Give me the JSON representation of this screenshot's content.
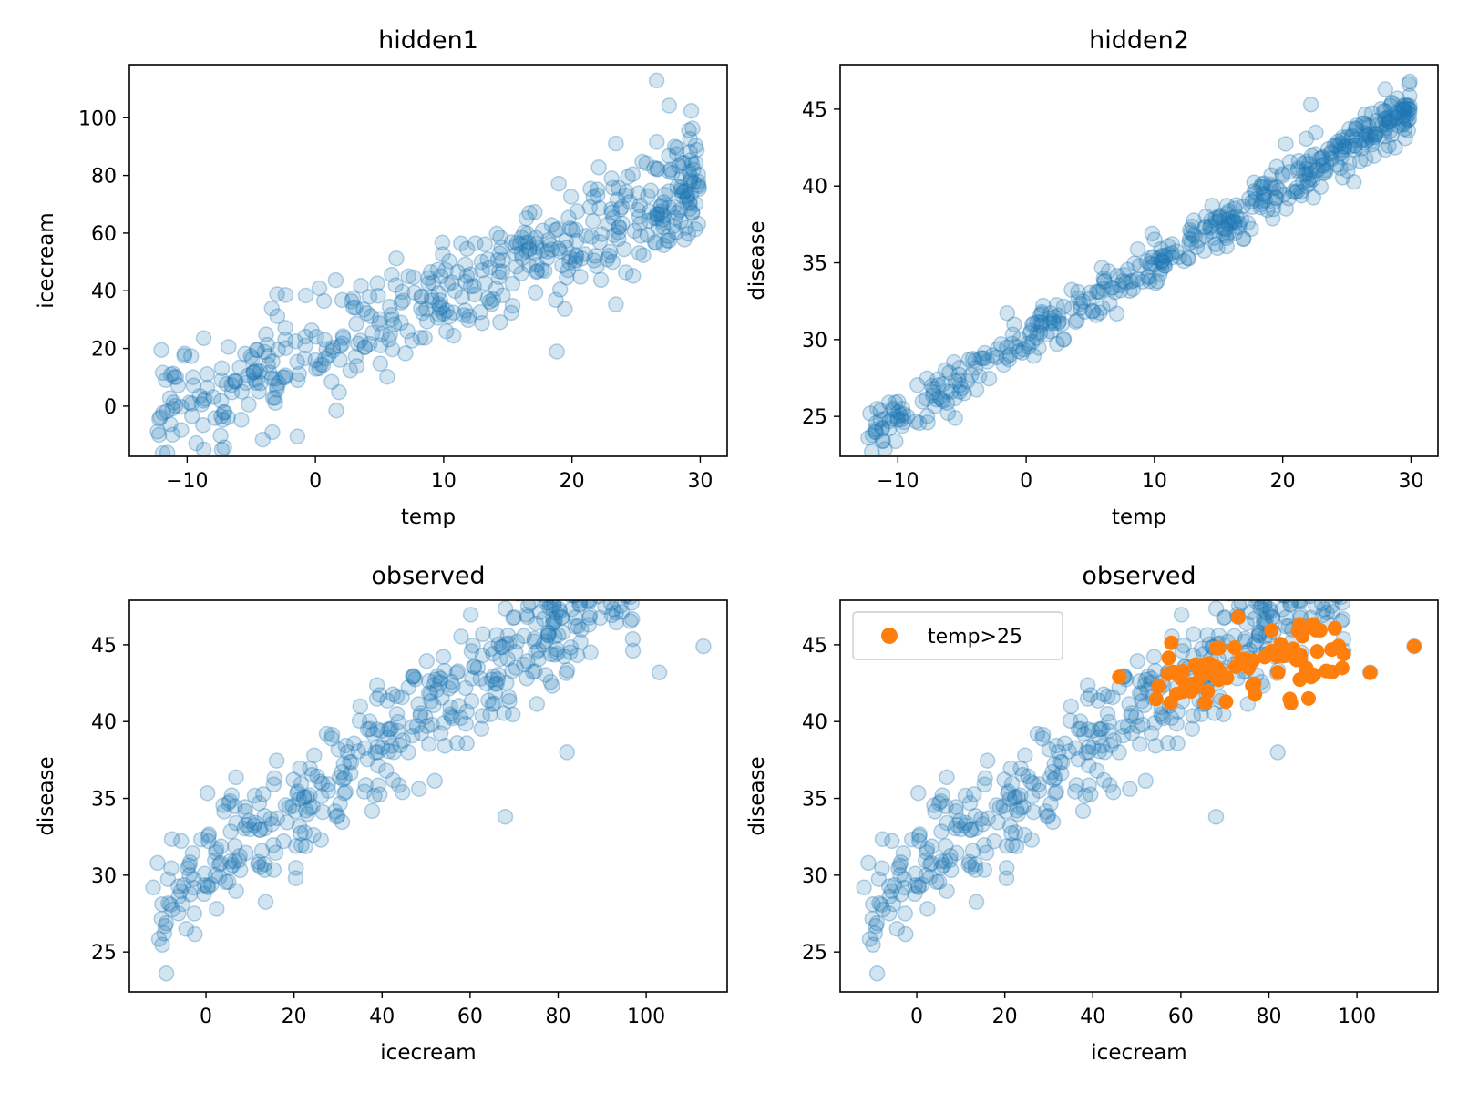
{
  "colors": {
    "blue": "#1f77b4",
    "orange": "#ff7f0e"
  },
  "chart_data": [
    {
      "type": "scatter",
      "title": "hidden1",
      "xlabel": "temp",
      "ylabel": "icecream",
      "xlim": [
        -14.5,
        32.1
      ],
      "ylim": [
        -17.4,
        118.4
      ],
      "xticks": [
        -10,
        0,
        10,
        20,
        30
      ],
      "xtick_labels": [
        "−10",
        "0",
        "10",
        "20",
        "30"
      ],
      "yticks": [
        0,
        20,
        40,
        60,
        80,
        100
      ],
      "ytick_labels": [
        "0",
        "20",
        "40",
        "60",
        "80",
        "100"
      ],
      "series": [
        {
          "kind": "trend",
          "alpha": 0.2,
          "seed": 11,
          "count": 480,
          "x_range": [
            -12.3,
            29.9
          ],
          "x_dist": "skew",
          "slope": 1.9,
          "intercept": 19,
          "noise": 9.5,
          "extra": [
            [
              -12.3,
              -8.8
            ],
            [
              -10.2,
              18.2
            ],
            [
              -10.7,
              7.2
            ],
            [
              -6.5,
              4.8
            ],
            [
              -4.1,
              -11.6
            ],
            [
              -3.4,
              33.9
            ],
            [
              -1.4,
              -10.5
            ],
            [
              26.6,
              112.9
            ],
            [
              29.3,
              102.4
            ],
            [
              29.4,
              96.3
            ],
            [
              24.2,
              46.4
            ]
          ]
        }
      ]
    },
    {
      "type": "scatter",
      "title": "hidden2",
      "xlabel": "temp",
      "ylabel": "disease",
      "xlim": [
        -14.5,
        32.1
      ],
      "ylim": [
        22.4,
        47.9
      ],
      "xticks": [
        -10,
        0,
        10,
        20,
        30
      ],
      "xtick_labels": [
        "−10",
        "0",
        "10",
        "20",
        "30"
      ],
      "yticks": [
        25,
        30,
        35,
        40,
        45
      ],
      "ytick_labels": [
        "25",
        "30",
        "35",
        "40",
        "45"
      ],
      "series": [
        {
          "kind": "trend",
          "alpha": 0.2,
          "seed": 22,
          "count": 480,
          "x_range": [
            -12.3,
            29.9
          ],
          "x_dist": "skew",
          "slope": 0.5,
          "intercept": 30,
          "noise": 0.75,
          "extra": [
            [
              -12.3,
              23.6
            ],
            [
              -10.2,
              25.9
            ],
            [
              -10.7,
              25.9
            ],
            [
              -6.5,
              27.1
            ],
            [
              29.9,
              46.8
            ],
            [
              28.0,
              46.3
            ],
            [
              22.2,
              45.3
            ]
          ]
        }
      ]
    },
    {
      "type": "scatter",
      "title": "observed",
      "xlabel": "icecream",
      "ylabel": "disease",
      "xlim": [
        -17.4,
        118.4
      ],
      "ylim": [
        22.4,
        47.9
      ],
      "xticks": [
        0,
        20,
        40,
        60,
        80,
        100
      ],
      "xtick_labels": [
        "0",
        "20",
        "40",
        "60",
        "80",
        "100"
      ],
      "yticks": [
        25,
        30,
        35,
        40,
        45
      ],
      "ytick_labels": [
        "25",
        "30",
        "35",
        "40",
        "45"
      ],
      "series": [
        {
          "kind": "trend",
          "alpha": 0.2,
          "seed": 33,
          "count": 480,
          "x_range": [
            -11,
            97
          ],
          "x_dist": "skew",
          "slope": 0.2,
          "intercept": 30.4,
          "noise": 2.0,
          "extra": [
            [
              -11.0,
              30.8
            ],
            [
              -9.0,
              23.6
            ],
            [
              -12.0,
              29.2
            ],
            [
              113.0,
              44.9
            ],
            [
              103.0,
              43.2
            ],
            [
              73.0,
              46.8
            ],
            [
              87.0,
              46.3
            ],
            [
              68.0,
              33.8
            ],
            [
              82.0,
              38.0
            ]
          ]
        }
      ]
    },
    {
      "type": "scatter",
      "title": "observed",
      "xlabel": "icecream",
      "ylabel": "disease",
      "xlim": [
        -17.4,
        118.4
      ],
      "ylim": [
        22.4,
        47.9
      ],
      "xticks": [
        0,
        20,
        40,
        60,
        80,
        100
      ],
      "xtick_labels": [
        "0",
        "20",
        "40",
        "60",
        "80",
        "100"
      ],
      "yticks": [
        25,
        30,
        35,
        40,
        45
      ],
      "ytick_labels": [
        "25",
        "30",
        "35",
        "40",
        "45"
      ],
      "legend": {
        "position": "upper left",
        "entries": [
          "temp>25"
        ]
      },
      "series": [
        {
          "kind": "trend",
          "alpha": 0.2,
          "seed": 33,
          "count": 480,
          "x_range": [
            -11,
            97
          ],
          "x_dist": "skew",
          "slope": 0.2,
          "intercept": 30.4,
          "noise": 2.0,
          "extra": [
            [
              -11.0,
              30.8
            ],
            [
              -9.0,
              23.6
            ],
            [
              -12.0,
              29.2
            ],
            [
              113.0,
              44.9
            ],
            [
              103.0,
              43.2
            ],
            [
              73.0,
              46.8
            ],
            [
              87.0,
              46.3
            ],
            [
              68.0,
              33.8
            ],
            [
              82.0,
              38.0
            ]
          ]
        },
        {
          "kind": "trend",
          "name": "temp>25",
          "alpha": 1.0,
          "color": "orange",
          "seed": 44,
          "count": 75,
          "x_range": [
            54,
            97
          ],
          "x_dist": "uniform",
          "slope": 0.05,
          "intercept": 39.8,
          "noise": 1.1,
          "extra": [
            [
              46.0,
              42.9
            ],
            [
              55.0,
              42.3
            ],
            [
              73.0,
              46.8
            ],
            [
              87.0,
              46.3
            ],
            [
              97.0,
              44.4
            ],
            [
              103.0,
              43.2
            ],
            [
              113.0,
              44.9
            ],
            [
              85.0,
              41.2
            ],
            [
              89.0,
              41.5
            ],
            [
              93.0,
              43.3
            ]
          ]
        }
      ]
    }
  ]
}
